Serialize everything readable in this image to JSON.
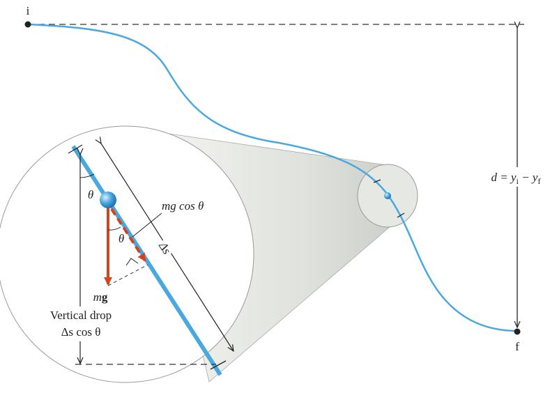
{
  "labels": {
    "start": "i",
    "end": "f",
    "height": [
      "d = y",
      "i",
      " − y",
      "f"
    ],
    "angle_top": "θ",
    "component": "mg cos θ",
    "angle_force": "θ",
    "path_length": "Δs",
    "weight": [
      "m",
      "g"
    ],
    "drop_title": "Vertical drop",
    "drop_value": "Δs cos θ"
  }
}
